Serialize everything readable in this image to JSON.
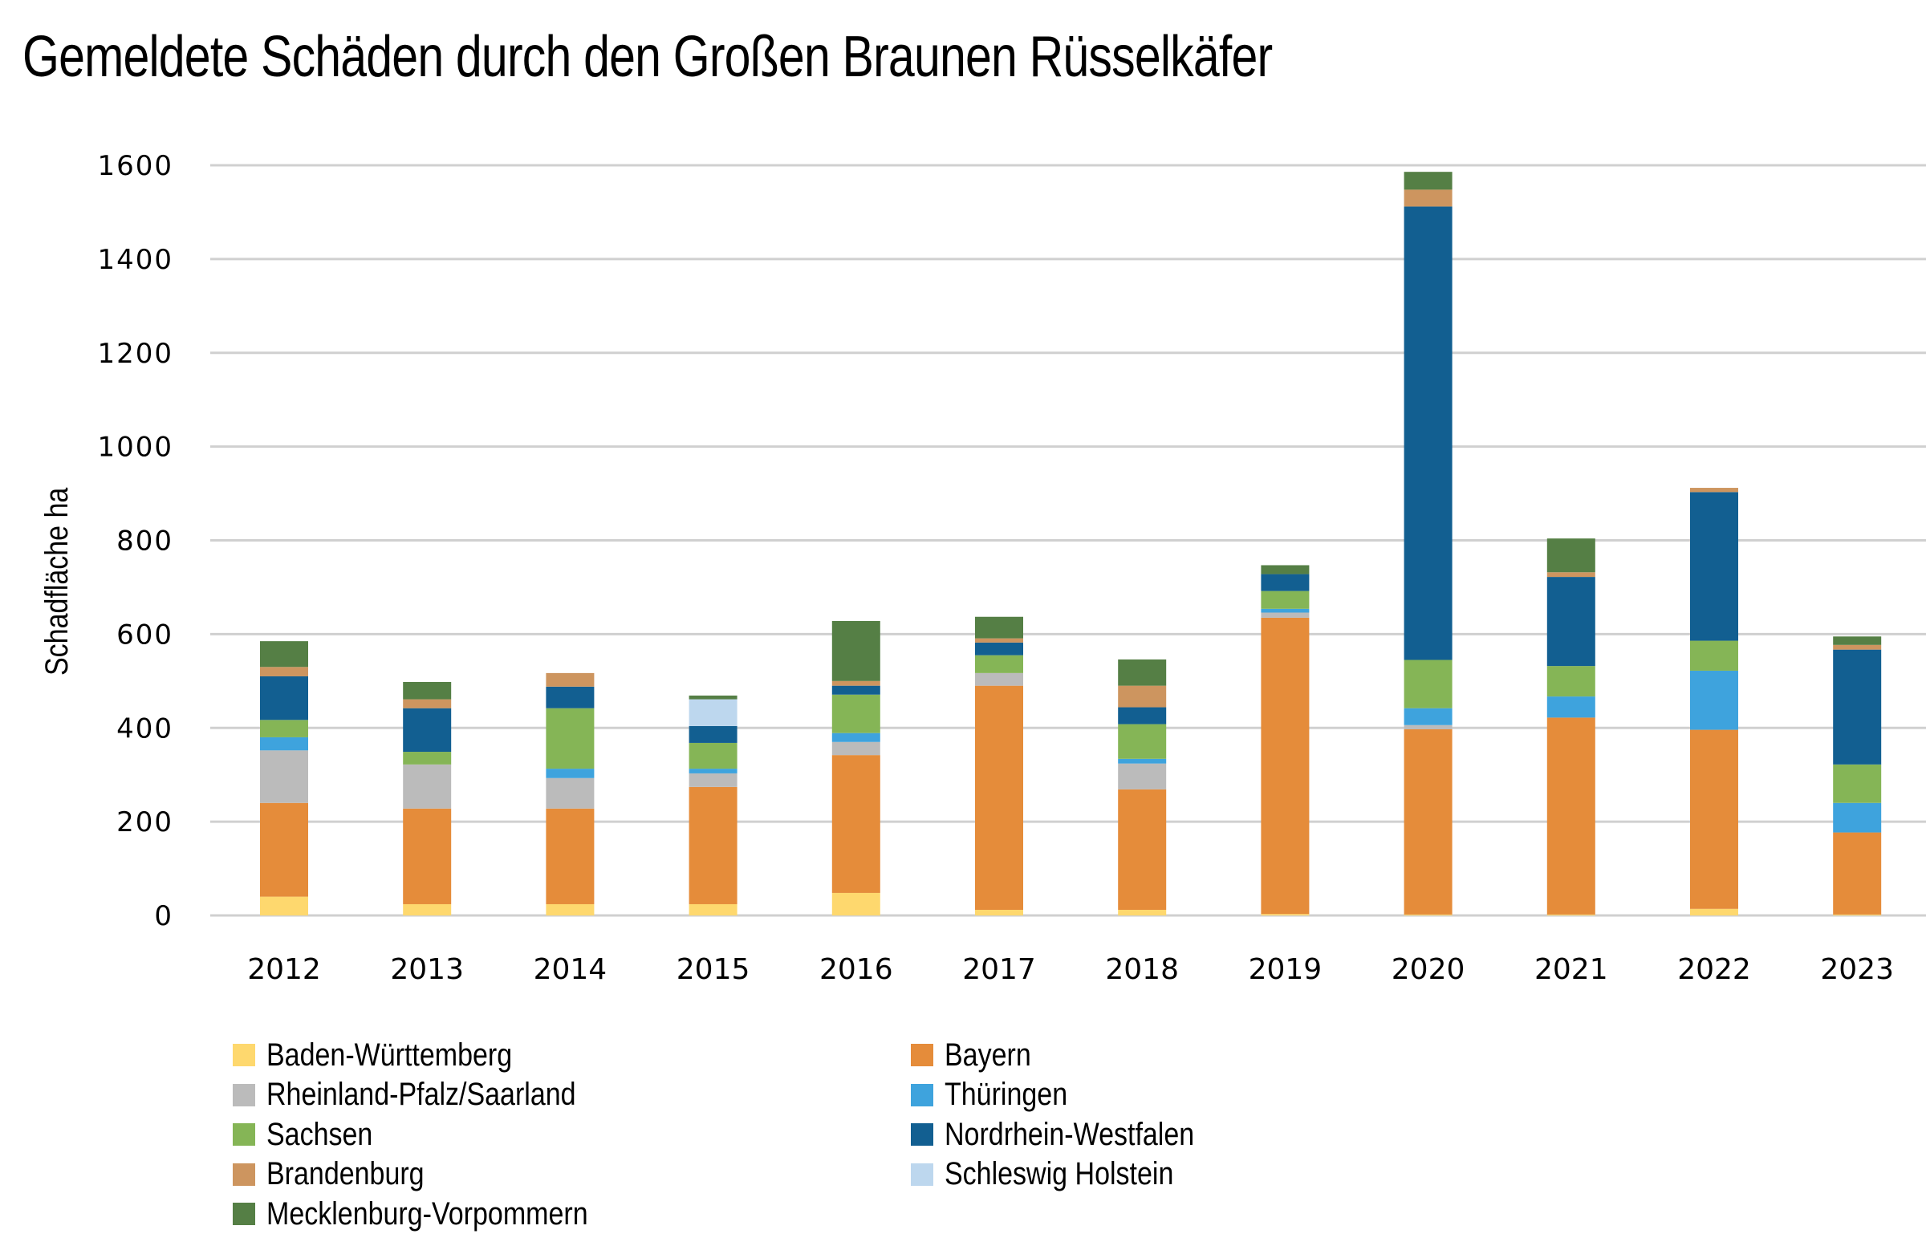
{
  "chart_data": {
    "type": "bar",
    "stacked": true,
    "title": "Gemeldete Schäden durch den Großen Braunen Rüsselkäfer",
    "xlabel": "",
    "ylabel": "Schadfläche ha",
    "ylim": [
      0,
      1600
    ],
    "yticks": [
      0,
      200,
      400,
      600,
      800,
      1000,
      1200,
      1400,
      1600
    ],
    "grid": true,
    "legend_position": "bottom",
    "categories": [
      "2012",
      "2013",
      "2014",
      "2015",
      "2016",
      "2017",
      "2018",
      "2019",
      "2020",
      "2021",
      "2022",
      "2023"
    ],
    "series": [
      {
        "name": "Baden-Württemberg",
        "color": "#FED86E",
        "values": [
          40,
          24,
          24,
          24,
          48,
          12,
          12,
          3,
          2,
          2,
          14,
          2
        ]
      },
      {
        "name": "Bayern",
        "color": "#E58C3A",
        "values": [
          200,
          204,
          204,
          250,
          294,
          478,
          257,
          632,
          395,
          420,
          382,
          175
        ]
      },
      {
        "name": "Rheinland-Pfalz/Saarland",
        "color": "#BBBBBB",
        "values": [
          112,
          94,
          65,
          29,
          28,
          27,
          55,
          11,
          9,
          0,
          0,
          0
        ]
      },
      {
        "name": "Thüringen",
        "color": "#3EA3DD",
        "values": [
          28,
          0,
          20,
          10,
          19,
          0,
          10,
          8,
          36,
          45,
          126,
          63
        ]
      },
      {
        "name": "Sachsen",
        "color": "#85B556",
        "values": [
          37,
          27,
          129,
          55,
          82,
          38,
          74,
          38,
          103,
          65,
          64,
          82
        ]
      },
      {
        "name": "Nordrhein-Westfalen",
        "color": "#125F91",
        "values": [
          93,
          93,
          46,
          36,
          19,
          27,
          36,
          36,
          967,
          190,
          317,
          245
        ]
      },
      {
        "name": "Schleswig Holstein",
        "color": "#BDD7EE",
        "values": [
          0,
          0,
          0,
          57,
          0,
          0,
          0,
          0,
          0,
          0,
          0,
          0
        ]
      },
      {
        "name": "Brandenburg",
        "color": "#CD955F",
        "values": [
          20,
          19,
          29,
          0,
          10,
          9,
          46,
          0,
          36,
          10,
          9,
          10
        ]
      },
      {
        "name": "Mecklenburg-Vorpommern",
        "color": "#557F45",
        "values": [
          55,
          37,
          0,
          8,
          128,
          46,
          56,
          19,
          38,
          72,
          0,
          18
        ]
      }
    ],
    "legend_order": [
      [
        "Baden-Württemberg",
        "Bayern"
      ],
      [
        "Rheinland-Pfalz/Saarland",
        "Thüringen"
      ],
      [
        "Sachsen",
        "Nordrhein-Westfalen"
      ],
      [
        "Brandenburg",
        "Schleswig Holstein"
      ],
      [
        "Mecklenburg-Vorpommern",
        null
      ]
    ]
  }
}
